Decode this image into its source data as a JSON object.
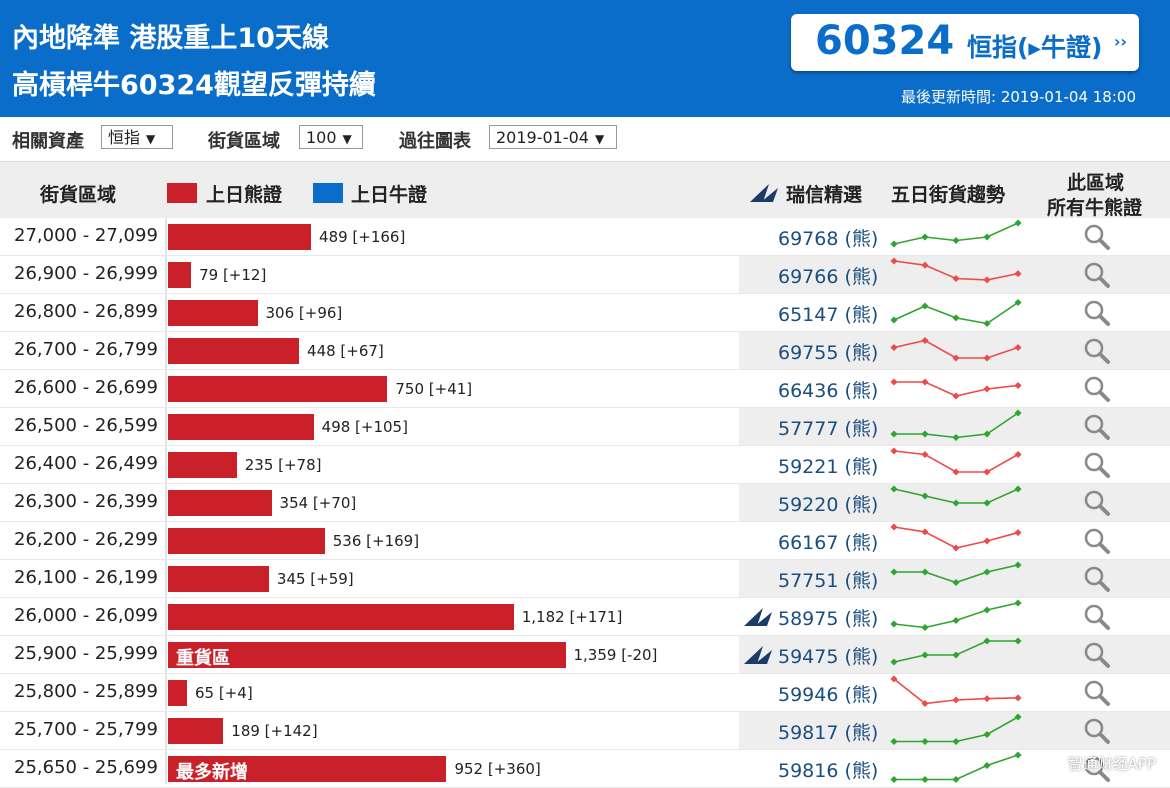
{
  "header": {
    "headline1": "內地降準 港股重上10天線",
    "headline2": "高槓桿牛60324觀望反彈持續",
    "code": "60324",
    "code_label": "恒指(▸牛證)",
    "code_arrow": "››",
    "update_time": "最後更新時間: 2019-01-04 18:00"
  },
  "filters": {
    "asset_label": "相關資產",
    "asset_value": "恒指",
    "zone_label": "街貨區域",
    "zone_value": "100",
    "history_label": "過往圖表",
    "history_value": "2019-01-04"
  },
  "columns": {
    "range": "街貨區域",
    "bear_legend": "上日熊證",
    "bull_legend": "上日牛證",
    "pick": "瑞信精選",
    "trend": "五日街貨趨勢",
    "all_line1": "此區域",
    "all_line2": "所有牛熊證"
  },
  "colors": {
    "bear": "#c9202a",
    "bull": "#0a6dc9",
    "trend_up": "#2ea52e",
    "trend_down": "#ee4a4a"
  },
  "bear_suffix": "(熊)",
  "chart_data": {
    "type": "bar",
    "categories": [
      "27,000 - 27,099",
      "26,900 - 26,999",
      "26,800 - 26,899",
      "26,700 - 26,799",
      "26,600 - 26,699",
      "26,500 - 26,599",
      "26,400 - 26,499",
      "26,300 - 26,399",
      "26,200 - 26,299",
      "26,100 - 26,199",
      "26,000 - 26,099",
      "25,900 - 25,999",
      "25,800 - 25,899",
      "25,700 - 25,799",
      "25,650 - 25,699"
    ],
    "values": [
      489,
      79,
      306,
      448,
      750,
      498,
      235,
      354,
      536,
      345,
      1182,
      1359,
      65,
      189,
      952
    ],
    "changes": [
      "+166",
      "+12",
      "+96",
      "+67",
      "+41",
      "+105",
      "+78",
      "+70",
      "+169",
      "+59",
      "+171",
      "-20",
      "+4",
      "+142",
      "+360"
    ],
    "labels": [
      "489 [+166]",
      "79 [+12]",
      "306 [+96]",
      "448 [+67]",
      "750 [+41]",
      "498 [+105]",
      "235 [+78]",
      "354 [+70]",
      "536 [+169]",
      "345 [+59]",
      "1,182 [+171]",
      "1,359 [-20]",
      "65 [+4]",
      "189 [+142]",
      "952 [+360]"
    ],
    "tags": [
      "",
      "",
      "",
      "",
      "",
      "",
      "",
      "",
      "",
      "",
      "",
      "重貨區",
      "",
      "",
      "最多新增"
    ],
    "codes": [
      "69768",
      "69766",
      "65147",
      "69755",
      "66436",
      "57777",
      "59221",
      "59220",
      "66167",
      "57751",
      "58975",
      "59475",
      "59946",
      "59817",
      "59816"
    ],
    "picks": [
      false,
      false,
      false,
      false,
      false,
      false,
      false,
      false,
      false,
      false,
      true,
      true,
      false,
      false,
      false
    ],
    "trend_series": [
      [
        1,
        2,
        1.5,
        2,
        4
      ],
      [
        4,
        3.4,
        1.5,
        1.3,
        2.2
      ],
      [
        1,
        3,
        1.3,
        0.5,
        3.5
      ],
      [
        2.5,
        3.5,
        1,
        1,
        2.5
      ],
      [
        3,
        3,
        1,
        2,
        2.5
      ],
      [
        1,
        1,
        0.5,
        1,
        4
      ],
      [
        4,
        3.5,
        1,
        1,
        3.5
      ],
      [
        4,
        3,
        2,
        2,
        4
      ],
      [
        4,
        3.3,
        1,
        2,
        3.2
      ],
      [
        3,
        3,
        1.5,
        3,
        4
      ],
      [
        1,
        0.5,
        1.5,
        3,
        4
      ],
      [
        1,
        2,
        2,
        4,
        4
      ],
      [
        4,
        0.5,
        1,
        1.2,
        1.3
      ],
      [
        0.5,
        0.5,
        0.5,
        1.5,
        4
      ],
      [
        0.5,
        0.5,
        0.5,
        2.5,
        4
      ]
    ],
    "trend_up": [
      true,
      false,
      true,
      false,
      false,
      true,
      false,
      true,
      false,
      true,
      true,
      true,
      false,
      true,
      true
    ]
  },
  "watermark": "智通财经APP"
}
